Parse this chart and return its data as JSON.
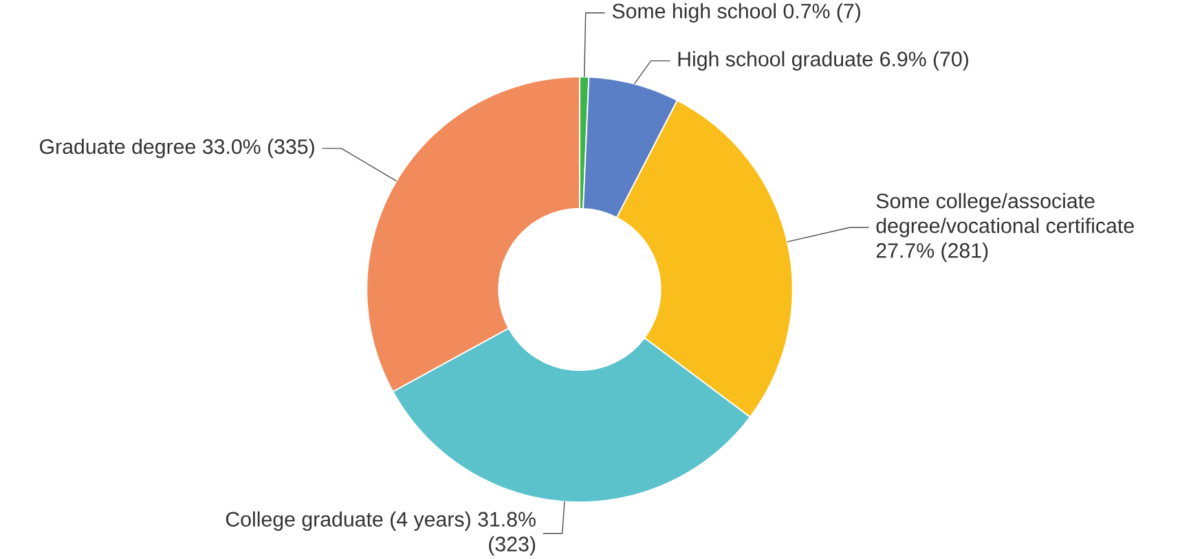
{
  "chart_data": {
    "type": "donut",
    "categories": [
      "Some high school",
      "High school graduate",
      "Some college/associate degree/vocational certificate",
      "College graduate (4 years)",
      "Graduate degree"
    ],
    "values": [
      7,
      70,
      281,
      323,
      335
    ],
    "value_labels": [
      "0.7% (7)",
      "6.9% (70)",
      "27.7% (281)",
      "31.8% (323)",
      "33.0% (335)"
    ],
    "colors": [
      "#3bb54a",
      "#5b7fc6",
      "#f9be1b",
      "#5bc2cc",
      "#f28b5b"
    ]
  }
}
